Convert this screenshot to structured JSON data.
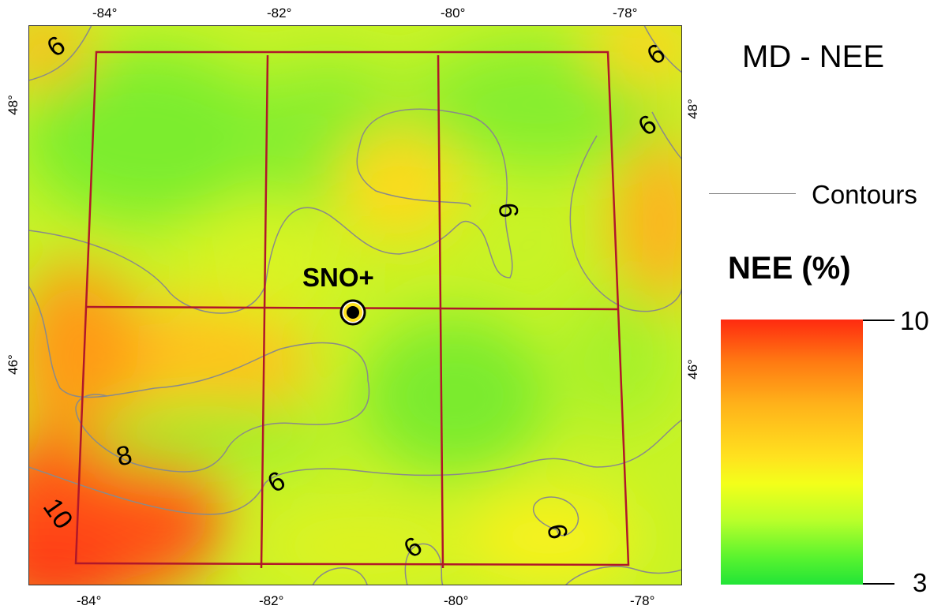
{
  "map": {
    "title": "MD - NEE",
    "site_label": "SNO+",
    "top_ticks": [
      "-84°",
      "-82°",
      "-80°",
      "-78°"
    ],
    "bottom_ticks": [
      "-84°",
      "-82°",
      "-80°",
      "-78°"
    ],
    "left_ticks": [
      "48°",
      "46°"
    ],
    "right_ticks": [
      "48°",
      "46°"
    ],
    "contour_labels": [
      "6",
      "6",
      "6",
      "9",
      "8",
      "6",
      "10",
      "6",
      "9"
    ]
  },
  "legend": {
    "contours_label": "Contours",
    "scale_title": "NEE (%)",
    "scale_max": "10",
    "scale_min": "3",
    "colors": {
      "high": "#ff2a10",
      "mid": "#f3ff1a",
      "low": "#22e437",
      "grid_line": "#b0172a",
      "contour_line": "#8a8a8a"
    }
  }
}
